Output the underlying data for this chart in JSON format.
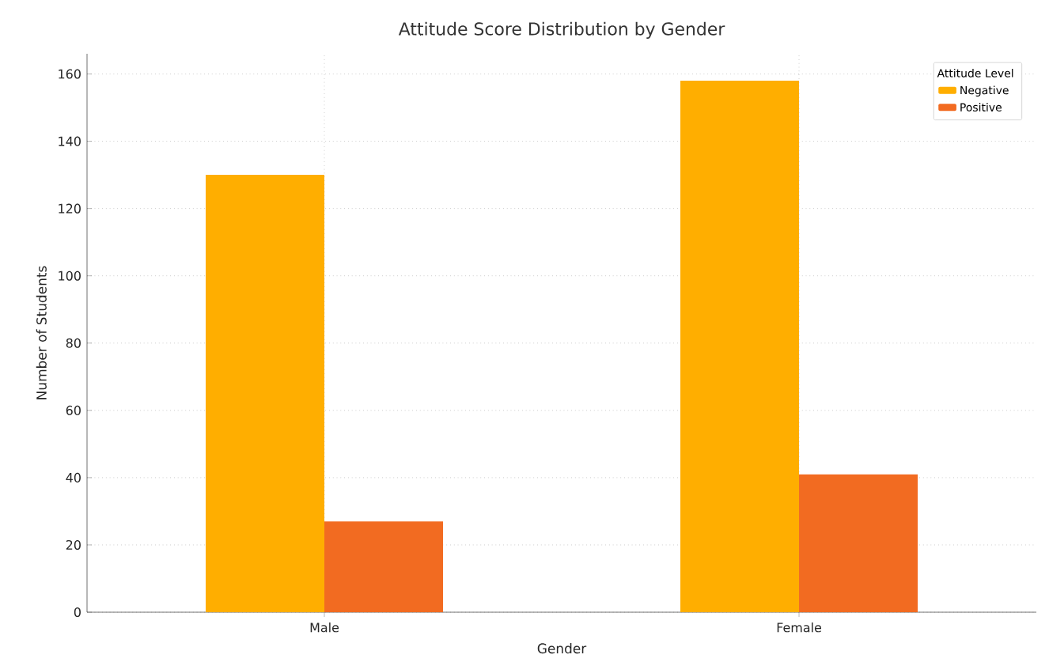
{
  "chart_data": {
    "type": "bar",
    "title": "Attitude Score Distribution by Gender",
    "xlabel": "Gender",
    "ylabel": "Number of Students",
    "legend_title": "Attitude Level",
    "categories": [
      "Male",
      "Female"
    ],
    "series": [
      {
        "name": "Negative",
        "color": "#ffae00",
        "values": [
          130,
          158
        ]
      },
      {
        "name": "Positive",
        "color": "#f26b21",
        "values": [
          27,
          41
        ]
      }
    ],
    "ylim": [
      0,
      166
    ],
    "yticks": [
      0,
      20,
      40,
      60,
      80,
      100,
      120,
      140,
      160
    ],
    "grid": true,
    "legend": "top right"
  }
}
